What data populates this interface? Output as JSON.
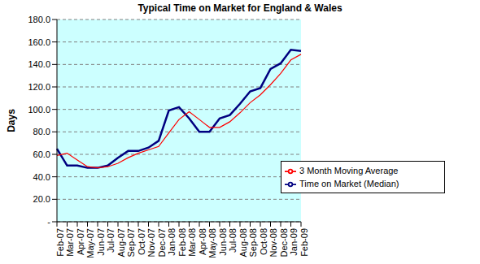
{
  "chart_data": {
    "type": "line",
    "title": "Typical Time on Market for England & Wales",
    "y_label": "Days",
    "categories": [
      "Feb-07",
      "Mar-07",
      "Apr-07",
      "May-07",
      "Jun-07",
      "Jul-07",
      "Aug-07",
      "Sep-07",
      "Oct-07",
      "Nov-07",
      "Dec-07",
      "Jan-08",
      "Feb-08",
      "Mar-08",
      "Apr-08",
      "May-08",
      "Jun-08",
      "Jul-08",
      "Aug-08",
      "Sep-08",
      "Oct-08",
      "Nov-08",
      "Dec-08",
      "Jan-09",
      "Feb-09"
    ],
    "series": [
      {
        "name": "Time on Market (Median)",
        "color": "#000080",
        "values": [
          65,
          50,
          50,
          48,
          48,
          50,
          57,
          63,
          63,
          66,
          72,
          99,
          102,
          92,
          80,
          80,
          92,
          95,
          105,
          116,
          119,
          136,
          141,
          153,
          152
        ]
      },
      {
        "name": "3 Month Moving Average",
        "color": "#ff0000",
        "values": [
          59,
          61,
          55,
          49,
          48,
          49,
          52,
          57,
          61,
          64,
          67,
          79,
          91,
          98,
          91,
          84,
          84,
          89,
          97,
          106,
          113,
          122,
          132,
          144,
          149
        ]
      }
    ],
    "ylim": [
      0,
      180
    ],
    "yticks": [
      {
        "value": 0,
        "label": "-"
      },
      {
        "value": 20,
        "label": "20.0"
      },
      {
        "value": 40,
        "label": "40.0"
      },
      {
        "value": 60,
        "label": "60.0"
      },
      {
        "value": 80,
        "label": "80.0"
      },
      {
        "value": 100,
        "label": "100.0"
      },
      {
        "value": 120,
        "label": "120.0"
      },
      {
        "value": 140,
        "label": "140.0"
      },
      {
        "value": 160,
        "label": "160.0"
      },
      {
        "value": 180,
        "label": "180.0"
      }
    ],
    "grid": true,
    "legend": "lower right"
  }
}
